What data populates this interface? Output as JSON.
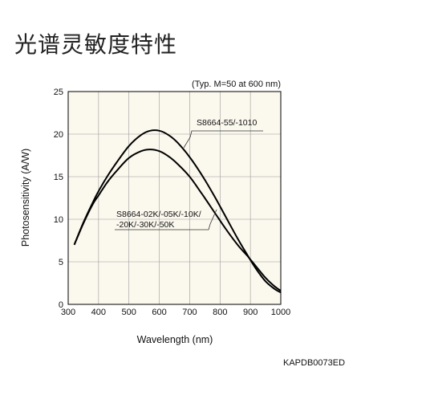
{
  "page": {
    "title": "光谱灵敏度特性",
    "doc_code": "KAPDB0073ED"
  },
  "chart_data": {
    "type": "line",
    "title": "",
    "note": "(Typ. M=50 at 600 nm)",
    "xlabel": "Wavelength (nm)",
    "ylabel": "Photosensitivity (A/W)",
    "xlim": [
      300,
      1000
    ],
    "ylim": [
      0,
      25
    ],
    "xticks": [
      300,
      400,
      500,
      600,
      700,
      800,
      900,
      1000
    ],
    "yticks": [
      0,
      5,
      10,
      15,
      20,
      25
    ],
    "grid": true,
    "background_color": "#fbf8ee",
    "line_color": "#000000",
    "series": [
      {
        "name": "S8664-55/-1010",
        "x": [
          320,
          350,
          380,
          400,
          430,
          460,
          500,
          540,
          570,
          600,
          630,
          660,
          700,
          740,
          780,
          820,
          860,
          890,
          920,
          950,
          980,
          1000
        ],
        "y": [
          7.0,
          9.6,
          11.9,
          13.3,
          15.1,
          16.7,
          18.6,
          19.9,
          20.4,
          20.4,
          19.9,
          19.0,
          17.3,
          15.2,
          12.8,
          10.2,
          7.6,
          5.8,
          4.1,
          2.7,
          1.8,
          1.4
        ]
      },
      {
        "name": "S8664-02K/-05K/-10K/\n-20K/-30K/-50K",
        "x": [
          320,
          350,
          380,
          400,
          430,
          460,
          500,
          540,
          570,
          600,
          630,
          660,
          700,
          740,
          780,
          820,
          860,
          890,
          920,
          950,
          980,
          1000
        ],
        "y": [
          7.0,
          9.5,
          11.7,
          12.8,
          14.4,
          15.7,
          17.2,
          18.0,
          18.2,
          18.0,
          17.4,
          16.5,
          15.0,
          13.0,
          10.9,
          8.8,
          6.9,
          5.7,
          4.4,
          3.1,
          2.1,
          1.6
        ]
      }
    ],
    "annotations": [
      {
        "series": 0,
        "label": "S8664-55/-1010"
      },
      {
        "series": 1,
        "label_lines": [
          "S8664-02K/-05K/-10K/",
          "-20K/-30K/-50K"
        ]
      }
    ]
  }
}
